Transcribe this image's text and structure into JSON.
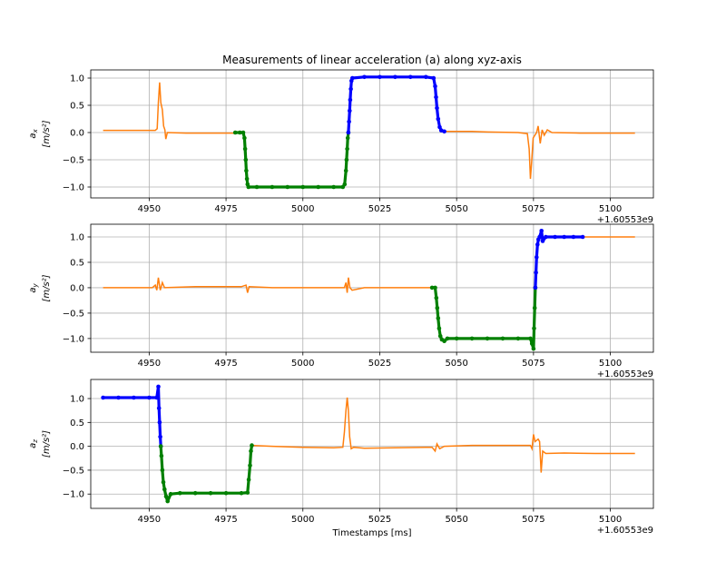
{
  "chart_data": [
    {
      "type": "line",
      "title": "Measurements of linear acceleration (a) along xyz-axis",
      "ylabel_symbol": "a",
      "ylabel_sub": "x",
      "ylabel_unit": "[m/s²]",
      "xlabel": "",
      "x_offset_label": "+1.60553e9",
      "xlim": [
        4931,
        5114
      ],
      "ylim": [
        -1.2,
        1.15
      ],
      "xticks": [
        4950,
        4975,
        5000,
        5025,
        5050,
        5075,
        5100
      ],
      "xtick_labels": [
        "4950",
        "4975",
        "5000",
        "5025",
        "5050",
        "5075",
        "5100"
      ],
      "yticks": [
        1.0,
        0.5,
        0.0,
        -0.5,
        -1.0
      ],
      "ytick_labels": [
        "1.0",
        "0.5",
        "0.0",
        "−0.5",
        "−1.0"
      ],
      "grid": true,
      "series": [
        {
          "color": "#ff7f0e",
          "marker": "line",
          "points": [
            [
              4935,
              0.04
            ],
            [
              4952,
              0.04
            ],
            [
              4952.6,
              0.07
            ],
            [
              4953,
              0.55
            ],
            [
              4953.4,
              0.92
            ],
            [
              4953.8,
              0.55
            ],
            [
              4954.3,
              0.42
            ],
            [
              4954.7,
              0.12
            ],
            [
              4955.1,
              0.05
            ],
            [
              4955.4,
              -0.12
            ],
            [
              4955.9,
              0.0
            ],
            [
              4962,
              -0.01
            ],
            [
              4970,
              -0.01
            ],
            [
              4978,
              -0.01
            ]
          ]
        },
        {
          "color": "#ff7f0e",
          "marker": "line",
          "points": [
            [
              5046,
              0.02
            ],
            [
              5055,
              0.02
            ],
            [
              5060,
              0.01
            ],
            [
              5070,
              0.0
            ],
            [
              5073,
              -0.02
            ],
            [
              5073.6,
              -0.3
            ],
            [
              5074,
              -0.85
            ],
            [
              5074.4,
              -0.55
            ],
            [
              5074.9,
              -0.1
            ],
            [
              5076,
              0.0
            ],
            [
              5076.5,
              0.12
            ],
            [
              5077.2,
              -0.2
            ],
            [
              5077.8,
              0.05
            ],
            [
              5078.5,
              -0.05
            ],
            [
              5079.5,
              0.05
            ],
            [
              5081,
              0.0
            ],
            [
              5090,
              -0.01
            ],
            [
              5100,
              -0.01
            ],
            [
              5108,
              -0.01
            ]
          ]
        },
        {
          "color": "#008000",
          "marker": "dot",
          "points": [
            [
              4978,
              0.0
            ],
            [
              4979.5,
              0.0
            ],
            [
              4980.6,
              0.0
            ],
            [
              4981,
              -0.1
            ],
            [
              4981.2,
              -0.3
            ],
            [
              4981.4,
              -0.5
            ],
            [
              4981.6,
              -0.7
            ],
            [
              4981.8,
              -0.85
            ],
            [
              4982,
              -0.95
            ],
            [
              4982.3,
              -1.0
            ],
            [
              4985,
              -1.0
            ],
            [
              4990,
              -1.0
            ],
            [
              4995,
              -1.0
            ],
            [
              5000,
              -1.0
            ],
            [
              5005,
              -1.0
            ],
            [
              5010,
              -1.0
            ],
            [
              5013,
              -1.0
            ],
            [
              5013.6,
              -0.95
            ],
            [
              5014,
              -0.7
            ],
            [
              5014.2,
              -0.5
            ],
            [
              5014.4,
              -0.3
            ],
            [
              5014.6,
              -0.1
            ],
            [
              5014.8,
              0.0
            ]
          ]
        },
        {
          "color": "#0000ff",
          "marker": "dot",
          "points": [
            [
              5014.8,
              0.0
            ],
            [
              5015,
              0.2
            ],
            [
              5015.2,
              0.4
            ],
            [
              5015.4,
              0.6
            ],
            [
              5015.6,
              0.8
            ],
            [
              5015.8,
              0.95
            ],
            [
              5016.1,
              1.0
            ],
            [
              5020,
              1.02
            ],
            [
              5025,
              1.02
            ],
            [
              5030,
              1.02
            ],
            [
              5035,
              1.02
            ],
            [
              5040,
              1.02
            ],
            [
              5042.5,
              1.0
            ],
            [
              5043,
              0.85
            ],
            [
              5043.3,
              0.65
            ],
            [
              5043.6,
              0.45
            ],
            [
              5044,
              0.25
            ],
            [
              5044.5,
              0.1
            ],
            [
              5045,
              0.04
            ],
            [
              5046,
              0.02
            ]
          ]
        }
      ]
    },
    {
      "type": "line",
      "ylabel_symbol": "a",
      "ylabel_sub": "y",
      "ylabel_unit": "[m/s²]",
      "xlabel": "",
      "x_offset_label": "+1.60553e9",
      "xlim": [
        4931,
        5114
      ],
      "ylim": [
        -1.27,
        1.25
      ],
      "xticks": [
        4950,
        4975,
        5000,
        5025,
        5050,
        5075,
        5100
      ],
      "xtick_labels": [
        "4950",
        "4975",
        "5000",
        "5025",
        "5050",
        "5075",
        "5100"
      ],
      "yticks": [
        1.0,
        0.5,
        0.0,
        -0.5,
        -1.0
      ],
      "ytick_labels": [
        "1.0",
        "0.5",
        "0.0",
        "−0.5",
        "−1.0"
      ],
      "grid": true,
      "series": [
        {
          "color": "#ff7f0e",
          "marker": "line",
          "points": [
            [
              4935,
              0.0
            ],
            [
              4945,
              0.0
            ],
            [
              4951,
              0.0
            ],
            [
              4952,
              0.05
            ],
            [
              4952.5,
              -0.05
            ],
            [
              4953,
              0.2
            ],
            [
              4953.6,
              -0.05
            ],
            [
              4954.3,
              0.1
            ],
            [
              4955,
              0.0
            ],
            [
              4965,
              0.02
            ],
            [
              4975,
              0.02
            ],
            [
              4980,
              0.02
            ],
            [
              4981.5,
              0.05
            ],
            [
              4982,
              -0.1
            ],
            [
              4982.5,
              0.02
            ],
            [
              4990,
              0.0
            ],
            [
              5000,
              0.0
            ],
            [
              5010,
              0.0
            ],
            [
              5013.5,
              0.0
            ],
            [
              5014,
              0.1
            ],
            [
              5014.4,
              -0.1
            ],
            [
              5014.8,
              0.2
            ],
            [
              5015.3,
              0.0
            ],
            [
              5016,
              -0.05
            ],
            [
              5020,
              0.0
            ],
            [
              5030,
              0.0
            ],
            [
              5040,
              0.0
            ],
            [
              5042,
              0.0
            ]
          ]
        },
        {
          "color": "#ff7f0e",
          "marker": "line",
          "points": [
            [
              5091,
              1.0
            ],
            [
              5100,
              1.0
            ],
            [
              5108,
              1.0
            ]
          ]
        },
        {
          "color": "#008000",
          "marker": "dot",
          "points": [
            [
              5042,
              0.0
            ],
            [
              5043,
              0.0
            ],
            [
              5043.4,
              -0.2
            ],
            [
              5043.7,
              -0.4
            ],
            [
              5044,
              -0.6
            ],
            [
              5044.3,
              -0.8
            ],
            [
              5044.7,
              -0.95
            ],
            [
              5045.2,
              -1.02
            ],
            [
              5046,
              -1.05
            ],
            [
              5047,
              -1.0
            ],
            [
              5050,
              -1.0
            ],
            [
              5055,
              -1.0
            ],
            [
              5060,
              -1.0
            ],
            [
              5065,
              -1.0
            ],
            [
              5070,
              -1.0
            ],
            [
              5074,
              -1.0
            ],
            [
              5074.5,
              -1.1
            ],
            [
              5075,
              -1.2
            ],
            [
              5075.2,
              -0.8
            ],
            [
              5075.4,
              -0.4
            ],
            [
              5075.6,
              0.0
            ]
          ]
        },
        {
          "color": "#0000ff",
          "marker": "dot",
          "points": [
            [
              5075.6,
              0.0
            ],
            [
              5075.8,
              0.3
            ],
            [
              5076,
              0.6
            ],
            [
              5076.3,
              0.85
            ],
            [
              5076.6,
              0.95
            ],
            [
              5077,
              1.0
            ],
            [
              5077.6,
              1.12
            ],
            [
              5078,
              0.92
            ],
            [
              5079,
              1.0
            ],
            [
              5082,
              1.0
            ],
            [
              5085,
              1.0
            ],
            [
              5088,
              1.0
            ],
            [
              5091,
              1.0
            ]
          ]
        }
      ]
    },
    {
      "type": "line",
      "ylabel_symbol": "a",
      "ylabel_sub": "z",
      "ylabel_unit": "[m/s²]",
      "xlabel": "Timestamps [ms]",
      "x_offset_label": "+1.60553e9",
      "xlim": [
        4931,
        5114
      ],
      "ylim": [
        -1.3,
        1.4
      ],
      "xticks": [
        4950,
        4975,
        5000,
        5025,
        5050,
        5075,
        5100
      ],
      "xtick_labels": [
        "4950",
        "4975",
        "5000",
        "5025",
        "5050",
        "5075",
        "5100"
      ],
      "yticks": [
        1.0,
        0.5,
        0.0,
        -0.5,
        -1.0
      ],
      "ytick_labels": [
        "1.0",
        "0.5",
        "0.0",
        "−0.5",
        "−1.0"
      ],
      "grid": true,
      "series": [
        {
          "color": "#ff7f0e",
          "marker": "line",
          "points": [
            [
              4983,
              0.02
            ],
            [
              4990,
              0.0
            ],
            [
              5000,
              -0.02
            ],
            [
              5010,
              -0.03
            ],
            [
              5013,
              -0.02
            ],
            [
              5013.5,
              0.3
            ],
            [
              5014,
              0.75
            ],
            [
              5014.4,
              1.02
            ],
            [
              5014.8,
              0.75
            ],
            [
              5015.2,
              0.2
            ],
            [
              5015.7,
              -0.05
            ],
            [
              5016.5,
              -0.02
            ],
            [
              5020,
              -0.04
            ],
            [
              5030,
              -0.03
            ],
            [
              5040,
              -0.02
            ],
            [
              5042,
              -0.02
            ],
            [
              5043,
              -0.1
            ],
            [
              5043.6,
              0.05
            ],
            [
              5044.5,
              -0.05
            ],
            [
              5046,
              0.0
            ],
            [
              5055,
              0.02
            ],
            [
              5065,
              0.02
            ],
            [
              5074,
              0.02
            ],
            [
              5074.5,
              -0.05
            ],
            [
              5075,
              0.25
            ],
            [
              5075.5,
              0.1
            ],
            [
              5076.5,
              0.15
            ],
            [
              5077,
              0.1
            ],
            [
              5077.5,
              -0.55
            ],
            [
              5078,
              -0.1
            ],
            [
              5079,
              -0.15
            ],
            [
              5085,
              -0.14
            ],
            [
              5095,
              -0.15
            ],
            [
              5108,
              -0.15
            ]
          ]
        },
        {
          "color": "#0000ff",
          "marker": "dot",
          "points": [
            [
              4935,
              1.02
            ],
            [
              4940,
              1.02
            ],
            [
              4945,
              1.02
            ],
            [
              4950,
              1.02
            ],
            [
              4952.5,
              1.02
            ],
            [
              4953,
              1.25
            ],
            [
              4953.2,
              0.8
            ],
            [
              4953.4,
              0.5
            ],
            [
              4953.6,
              0.2
            ],
            [
              4953.8,
              0.0
            ]
          ]
        },
        {
          "color": "#008000",
          "marker": "dot",
          "points": [
            [
              4953.8,
              0.0
            ],
            [
              4954,
              -0.2
            ],
            [
              4954.3,
              -0.5
            ],
            [
              4954.6,
              -0.75
            ],
            [
              4955,
              -0.9
            ],
            [
              4955.5,
              -1.05
            ],
            [
              4956,
              -1.15
            ],
            [
              4957,
              -1.0
            ],
            [
              4960,
              -0.98
            ],
            [
              4965,
              -0.98
            ],
            [
              4970,
              -0.98
            ],
            [
              4975,
              -0.98
            ],
            [
              4980,
              -0.98
            ],
            [
              4982,
              -0.97
            ],
            [
              4982.4,
              -0.7
            ],
            [
              4982.8,
              -0.4
            ],
            [
              4983.1,
              -0.1
            ],
            [
              4983.4,
              0.02
            ]
          ]
        }
      ]
    }
  ]
}
